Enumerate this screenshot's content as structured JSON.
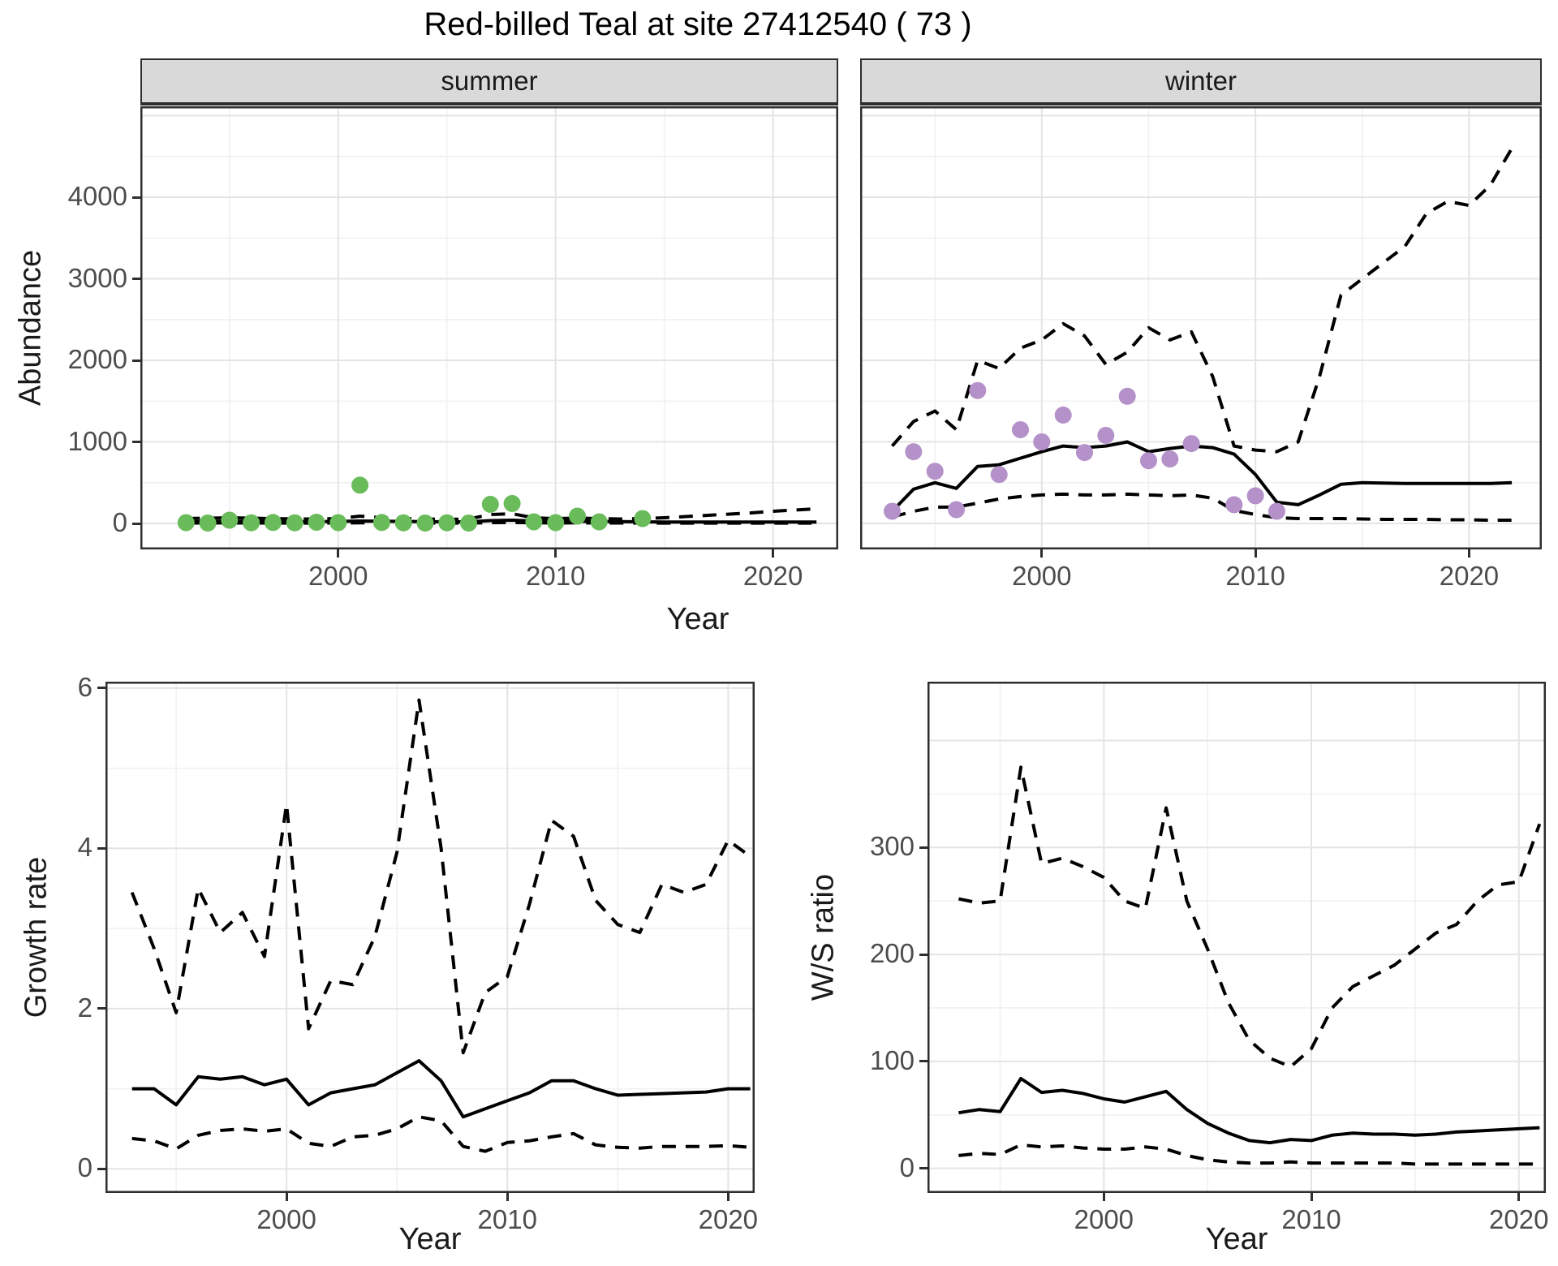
{
  "title": "Red-billed Teal at site 27412540 ( 73 )",
  "axis_labels": {
    "abundance_y": "Abundance",
    "abundance_x": "Year",
    "growth_y": "Growth rate",
    "growth_x": "Year",
    "ws_y": "W/S ratio",
    "ws_x": "Year"
  },
  "facets": {
    "summer": "summer",
    "winter": "winter"
  },
  "colors": {
    "summer_points": "#6abc5b",
    "winter_points": "#b491c8",
    "line": "#000000",
    "strip_bg": "#d9d9d9",
    "grid_major": "#e4e4e4",
    "grid_minor": "#f1f1f1",
    "axis_text": "#4d4d4d",
    "panel_border": "#2e2e2e"
  },
  "chart_data": [
    {
      "id": "abundance-summer",
      "type": "line",
      "facet_label": "summer",
      "ylabel": "Abundance",
      "xlabel": "Year",
      "xlim": [
        1990.9,
        2023.0
      ],
      "ylim": [
        -318,
        5115
      ],
      "x_ticks": [
        2000,
        2010,
        2020
      ],
      "x_minor": [
        1995,
        2005,
        2015
      ],
      "y_ticks": [
        0,
        1000,
        2000,
        3000,
        4000
      ],
      "y_grid_major": [
        0,
        1000,
        2000,
        3000,
        4000,
        5000
      ],
      "y_minor": [
        500,
        1500,
        2500,
        3500,
        4500
      ],
      "show_y_tick_labels": true,
      "x": [
        1993,
        1994,
        1995,
        1996,
        1997,
        1998,
        1999,
        2000,
        2001,
        2002,
        2003,
        2004,
        2005,
        2006,
        2007,
        2008,
        2009,
        2010,
        2011,
        2012,
        2013,
        2014,
        2015,
        2016,
        2017,
        2018,
        2019,
        2020,
        2021,
        2022
      ],
      "series": [
        {
          "name": "upper-credible",
          "style": "dashed",
          "values": [
            60,
            65,
            70,
            65,
            60,
            55,
            55,
            60,
            90,
            70,
            60,
            55,
            50,
            55,
            110,
            120,
            70,
            60,
            65,
            60,
            55,
            60,
            70,
            85,
            100,
            115,
            130,
            150,
            165,
            180
          ]
        },
        {
          "name": "median",
          "style": "solid",
          "values": [
            20,
            25,
            28,
            25,
            24,
            22,
            22,
            25,
            30,
            28,
            25,
            22,
            20,
            20,
            35,
            40,
            30,
            25,
            26,
            24,
            22,
            20,
            18,
            18,
            18,
            18,
            18,
            18,
            18,
            18
          ]
        },
        {
          "name": "lower-credible",
          "style": "dashed",
          "values": [
            5,
            5,
            6,
            5,
            5,
            4,
            4,
            5,
            8,
            6,
            5,
            4,
            4,
            4,
            10,
            12,
            8,
            6,
            7,
            6,
            5,
            4,
            4,
            4,
            4,
            4,
            4,
            4,
            4,
            4
          ]
        }
      ],
      "points": {
        "name": "observed-count",
        "color": "#6abc5b",
        "x": [
          1993,
          1994,
          1995,
          1996,
          1997,
          1998,
          1999,
          2000,
          2001,
          2002,
          2003,
          2004,
          2005,
          2006,
          2007,
          2008,
          2009,
          2010,
          2011,
          2012,
          2014
        ],
        "y": [
          10,
          5,
          40,
          8,
          12,
          8,
          15,
          10,
          470,
          12,
          8,
          5,
          8,
          5,
          235,
          245,
          20,
          10,
          90,
          20,
          60
        ]
      }
    },
    {
      "id": "abundance-winter",
      "type": "line",
      "facet_label": "winter",
      "ylabel": "Abundance",
      "xlabel": "Year",
      "xlim": [
        1991.5,
        2023.4
      ],
      "ylim": [
        -318,
        5115
      ],
      "x_ticks": [
        2000,
        2010,
        2020
      ],
      "x_minor": [
        1995,
        2005,
        2015
      ],
      "y_ticks": [
        0,
        1000,
        2000,
        3000,
        4000
      ],
      "y_grid_major": [
        0,
        1000,
        2000,
        3000,
        4000,
        5000
      ],
      "y_minor": [
        500,
        1500,
        2500,
        3500,
        4500
      ],
      "show_y_tick_labels": false,
      "x": [
        1993,
        1994,
        1995,
        1996,
        1997,
        1998,
        1999,
        2000,
        2001,
        2002,
        2003,
        2004,
        2005,
        2006,
        2007,
        2008,
        2009,
        2010,
        2011,
        2012,
        2013,
        2014,
        2015,
        2016,
        2017,
        2018,
        2019,
        2020,
        2021,
        2022
      ],
      "series": [
        {
          "name": "upper-credible",
          "style": "dashed",
          "values": [
            950,
            1250,
            1380,
            1150,
            2000,
            1900,
            2150,
            2250,
            2450,
            2300,
            1950,
            2100,
            2400,
            2250,
            2350,
            1800,
            950,
            900,
            880,
            1000,
            1800,
            2800,
            3000,
            3200,
            3400,
            3800,
            3950,
            3900,
            4150,
            4600
          ]
        },
        {
          "name": "median",
          "style": "solid",
          "values": [
            150,
            420,
            500,
            430,
            700,
            720,
            800,
            880,
            950,
            930,
            950,
            1000,
            880,
            920,
            950,
            930,
            850,
            600,
            260,
            230,
            350,
            480,
            500,
            495,
            490,
            490,
            490,
            490,
            490,
            500
          ]
        },
        {
          "name": "lower-credible",
          "style": "dashed",
          "values": [
            80,
            150,
            200,
            200,
            250,
            300,
            330,
            350,
            360,
            350,
            350,
            360,
            350,
            340,
            350,
            310,
            160,
            110,
            70,
            60,
            60,
            60,
            55,
            50,
            50,
            50,
            45,
            45,
            40,
            40
          ]
        }
      ],
      "points": {
        "name": "observed-count",
        "color": "#b491c8",
        "x": [
          1993,
          1994,
          1995,
          1996,
          1997,
          1998,
          1999,
          2000,
          2001,
          2002,
          2003,
          2004,
          2005,
          2006,
          2007,
          2009,
          2010,
          2011
        ],
        "y": [
          150,
          880,
          640,
          170,
          1630,
          600,
          1150,
          1000,
          1330,
          870,
          1080,
          1560,
          770,
          790,
          980,
          230,
          340,
          150
        ]
      }
    },
    {
      "id": "growth-rate",
      "type": "line",
      "ylabel": "Growth rate",
      "xlabel": "Year",
      "xlim": [
        1991.8,
        2021.2
      ],
      "ylim": [
        -0.3,
        6.08
      ],
      "x_ticks": [
        2000,
        2010,
        2020
      ],
      "x_minor": [
        1995,
        2005,
        2015
      ],
      "y_ticks": [
        0,
        2,
        4,
        6
      ],
      "y_grid_major": [
        0,
        2,
        4,
        6
      ],
      "y_minor": [
        1,
        3,
        5
      ],
      "show_y_tick_labels": true,
      "x": [
        1993,
        1994,
        1995,
        1996,
        1997,
        1998,
        1999,
        2000,
        2001,
        2002,
        2003,
        2004,
        2005,
        2006,
        2007,
        2008,
        2009,
        2010,
        2011,
        2012,
        2013,
        2014,
        2015,
        2016,
        2017,
        2018,
        2019,
        2020,
        2021
      ],
      "series": [
        {
          "name": "upper-credible",
          "style": "dashed",
          "values": [
            3.45,
            2.75,
            1.95,
            3.5,
            2.95,
            3.2,
            2.65,
            4.55,
            1.75,
            2.35,
            2.3,
            2.9,
            3.95,
            5.85,
            4.0,
            1.45,
            2.2,
            2.4,
            3.3,
            4.35,
            4.15,
            3.35,
            3.05,
            2.95,
            3.55,
            3.45,
            3.55,
            4.1,
            3.9
          ]
        },
        {
          "name": "median",
          "style": "solid",
          "values": [
            1.0,
            1.0,
            0.8,
            1.15,
            1.12,
            1.15,
            1.05,
            1.12,
            0.8,
            0.95,
            1.0,
            1.05,
            1.2,
            1.35,
            1.1,
            0.65,
            0.75,
            0.85,
            0.95,
            1.1,
            1.1,
            1.0,
            0.92,
            0.93,
            0.94,
            0.95,
            0.96,
            1.0,
            1.0
          ]
        },
        {
          "name": "lower-credible",
          "style": "dashed",
          "values": [
            0.38,
            0.35,
            0.25,
            0.42,
            0.48,
            0.5,
            0.47,
            0.5,
            0.32,
            0.28,
            0.4,
            0.42,
            0.5,
            0.65,
            0.6,
            0.28,
            0.22,
            0.33,
            0.35,
            0.4,
            0.44,
            0.3,
            0.27,
            0.26,
            0.28,
            0.28,
            0.28,
            0.29,
            0.27
          ]
        }
      ]
    },
    {
      "id": "ws-ratio",
      "type": "line",
      "ylabel": "W/S ratio",
      "xlabel": "Year",
      "xlim": [
        1991.5,
        2021.3
      ],
      "ylim": [
        -23,
        455
      ],
      "x_ticks": [
        2000,
        2010,
        2020
      ],
      "x_minor": [
        1995,
        2005,
        2015
      ],
      "y_ticks": [
        0,
        100,
        200,
        300
      ],
      "y_grid_major": [
        0,
        100,
        200,
        300,
        400
      ],
      "y_minor": [
        50,
        150,
        250,
        350
      ],
      "show_y_tick_labels": true,
      "x": [
        1993,
        1994,
        1995,
        1996,
        1997,
        1998,
        1999,
        2000,
        2001,
        2002,
        2003,
        2004,
        2005,
        2006,
        2007,
        2008,
        2009,
        2010,
        2011,
        2012,
        2013,
        2014,
        2015,
        2016,
        2017,
        2018,
        2019,
        2020,
        2021
      ],
      "series": [
        {
          "name": "upper-credible",
          "style": "dashed",
          "values": [
            252,
            248,
            250,
            375,
            285,
            290,
            282,
            272,
            250,
            243,
            337,
            250,
            205,
            155,
            120,
            103,
            95,
            112,
            150,
            170,
            180,
            190,
            205,
            220,
            228,
            250,
            265,
            268,
            322
          ]
        },
        {
          "name": "median",
          "style": "solid",
          "values": [
            52,
            55,
            53,
            84,
            71,
            73,
            70,
            65,
            62,
            67,
            72,
            55,
            42,
            33,
            26,
            24,
            27,
            26,
            31,
            33,
            32,
            32,
            31,
            32,
            34,
            35,
            36,
            37,
            38
          ]
        },
        {
          "name": "lower-credible",
          "style": "dashed",
          "values": [
            12,
            14,
            13,
            22,
            20,
            21,
            19,
            18,
            18,
            20,
            18,
            12,
            8,
            6,
            5,
            5,
            6,
            5,
            5,
            5,
            5,
            5,
            4,
            4,
            4,
            4,
            4,
            4,
            4
          ]
        }
      ]
    }
  ]
}
